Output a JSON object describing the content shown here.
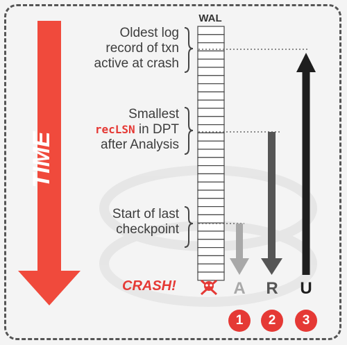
{
  "wal": {
    "title": "WAL"
  },
  "time_label": "TIME",
  "labels": {
    "oldest": [
      "Oldest log",
      "record of txn",
      "active at crash"
    ],
    "smallest_line1": "Smallest",
    "smallest_line2_code": "recLSN",
    "smallest_line2_rest": " in DPT",
    "smallest_line3": "after Analysis",
    "checkpoint": [
      "Start of last",
      "checkpoint"
    ]
  },
  "crash_label": "CRASH!",
  "phases": [
    {
      "letter": "A",
      "number": "1",
      "direction": "down",
      "color": "#a8a8a8"
    },
    {
      "letter": "R",
      "number": "2",
      "direction": "down",
      "color": "#555555"
    },
    {
      "letter": "U",
      "number": "3",
      "direction": "up",
      "color": "#1e1e1e"
    }
  ],
  "colors": {
    "accent": "#e53935",
    "text": "#3d3d3d"
  },
  "icons": {
    "crash": "skull-crossbones-icon"
  }
}
